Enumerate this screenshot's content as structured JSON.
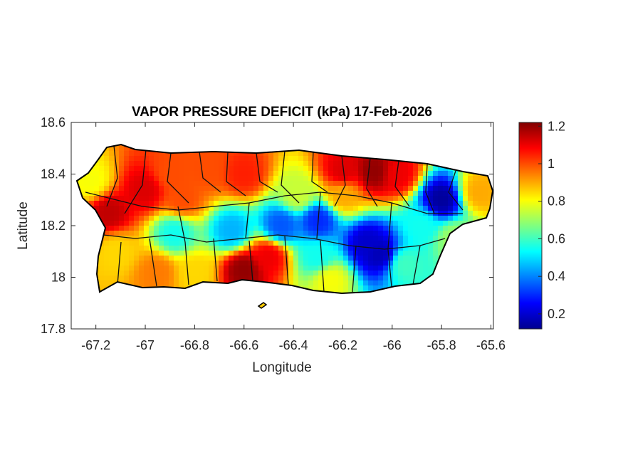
{
  "title": "VAPOR PRESSURE DEFICIT (kPa) 17-Feb-2026",
  "xlabel": "Longitude",
  "ylabel": "Latitude",
  "x_ticks": [
    {
      "value": -67.2,
      "label": "-67.2"
    },
    {
      "value": -67.0,
      "label": "-67"
    },
    {
      "value": -66.8,
      "label": "-66.8"
    },
    {
      "value": -66.6,
      "label": "-66.6"
    },
    {
      "value": -66.4,
      "label": "-66.4"
    },
    {
      "value": -66.2,
      "label": "-66.2"
    },
    {
      "value": -66.0,
      "label": "-66"
    },
    {
      "value": -65.8,
      "label": "-65.8"
    },
    {
      "value": -65.6,
      "label": "-65.6"
    }
  ],
  "y_ticks": [
    {
      "value": 17.8,
      "label": "17.8"
    },
    {
      "value": 18.0,
      "label": "18"
    },
    {
      "value": 18.2,
      "label": "18.2"
    },
    {
      "value": 18.4,
      "label": "18.4"
    },
    {
      "value": 18.6,
      "label": "18.6"
    }
  ],
  "colorbar": {
    "colormap": "jet",
    "range": [
      0.12,
      1.22
    ],
    "ticks": [
      {
        "value": 0.2,
        "label": "0.2"
      },
      {
        "value": 0.4,
        "label": "0.4"
      },
      {
        "value": 0.6,
        "label": "0.6"
      },
      {
        "value": 0.8,
        "label": "0.8"
      },
      {
        "value": 1.0,
        "label": "1"
      },
      {
        "value": 1.2,
        "label": "1.2"
      }
    ]
  },
  "chart_data": {
    "type": "heatmap",
    "title": "VAPOR PRESSURE DEFICIT (kPa) 17-Feb-2026",
    "xlabel": "Longitude",
    "ylabel": "Latitude",
    "xlim": [
      -67.3,
      -65.59
    ],
    "ylim": [
      17.8,
      18.6
    ],
    "value_range": [
      0.12,
      1.22
    ],
    "colormap": "jet",
    "grid": false,
    "background_value": 0.85,
    "field_points": [
      {
        "lon": -66.07,
        "lat": 18.41,
        "value": 1.2
      },
      {
        "lon": -66.2,
        "lat": 18.41,
        "value": 1.12
      },
      {
        "lon": -65.98,
        "lat": 18.4,
        "value": 1.1
      },
      {
        "lon": -66.6,
        "lat": 18.4,
        "value": 1.05
      },
      {
        "lon": -66.9,
        "lat": 18.4,
        "value": 1.0
      },
      {
        "lon": -66.75,
        "lat": 18.42,
        "value": 1.0
      },
      {
        "lon": -67.0,
        "lat": 18.34,
        "value": 1.12
      },
      {
        "lon": -66.85,
        "lat": 18.3,
        "value": 1.0
      },
      {
        "lon": -67.15,
        "lat": 18.25,
        "value": 1.15
      },
      {
        "lon": -67.12,
        "lat": 18.1,
        "value": 0.85
      },
      {
        "lon": -66.6,
        "lat": 18.03,
        "value": 1.2
      },
      {
        "lon": -66.5,
        "lat": 18.08,
        "value": 1.1
      },
      {
        "lon": -66.95,
        "lat": 18.02,
        "value": 0.95
      },
      {
        "lon": -66.25,
        "lat": 17.99,
        "value": 0.8
      },
      {
        "lon": -66.45,
        "lat": 18.2,
        "value": 0.35
      },
      {
        "lon": -66.3,
        "lat": 18.22,
        "value": 0.3
      },
      {
        "lon": -66.1,
        "lat": 18.13,
        "value": 0.2
      },
      {
        "lon": -66.05,
        "lat": 18.09,
        "value": 0.18
      },
      {
        "lon": -66.65,
        "lat": 18.18,
        "value": 0.45
      },
      {
        "lon": -66.88,
        "lat": 18.17,
        "value": 0.55
      },
      {
        "lon": -65.8,
        "lat": 18.3,
        "value": 0.15
      },
      {
        "lon": -65.88,
        "lat": 18.2,
        "value": 0.55
      },
      {
        "lon": -65.75,
        "lat": 18.15,
        "value": 0.7
      },
      {
        "lon": -65.95,
        "lat": 18.05,
        "value": 0.6
      },
      {
        "lon": -65.65,
        "lat": 18.33,
        "value": 0.9
      },
      {
        "lon": -66.2,
        "lat": 18.32,
        "value": 0.9
      },
      {
        "lon": -66.38,
        "lat": 18.32,
        "value": 0.75
      },
      {
        "lon": -66.8,
        "lat": 18.02,
        "value": 0.85
      },
      {
        "lon": -66.3,
        "lat": 18.08,
        "value": 0.55
      },
      {
        "lon": -67.22,
        "lat": 18.37,
        "value": 0.8
      }
    ]
  }
}
